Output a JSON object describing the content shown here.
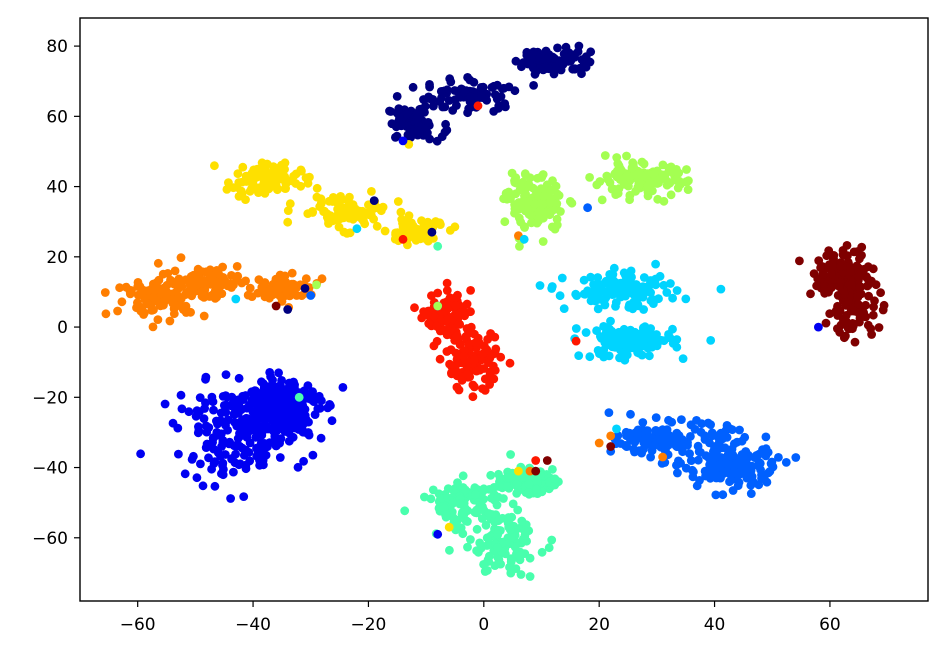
{
  "chart_data": {
    "type": "scatter",
    "title": "",
    "xlabel": "",
    "ylabel": "",
    "xlim": [
      -70,
      77
    ],
    "ylim": [
      -78,
      88
    ],
    "xticks": [
      -60,
      -40,
      -20,
      0,
      20,
      40,
      60
    ],
    "yticks": [
      -60,
      -40,
      -20,
      0,
      20,
      40,
      60,
      80
    ],
    "xtick_labels": [
      "−60",
      "−40",
      "−20",
      "0",
      "20",
      "40",
      "60"
    ],
    "ytick_labels": [
      "−60",
      "−40",
      "−20",
      "0",
      "20",
      "40",
      "60",
      "80"
    ],
    "grid": false,
    "legend": "none",
    "clusters": [
      {
        "color": "#00007f",
        "centers": [
          [
            -12,
            58,
            3,
            3
          ],
          [
            -2,
            66,
            5,
            3
          ],
          [
            12,
            76,
            4,
            2.5
          ]
        ],
        "count": 230
      },
      {
        "color": "#fee000",
        "centers": [
          [
            -38,
            42,
            4,
            3
          ],
          [
            -24,
            33,
            5,
            3
          ],
          [
            -12,
            27,
            3,
            2
          ]
        ],
        "count": 260
      },
      {
        "color": "#a4ff52",
        "centers": [
          [
            9,
            35,
            3,
            5
          ],
          [
            27,
            42,
            5,
            3
          ]
        ],
        "count": 250
      },
      {
        "color": "#ff7e00",
        "centers": [
          [
            -56,
            8,
            5,
            3
          ],
          [
            -48,
            13,
            5,
            3
          ],
          [
            -34,
            11,
            3,
            2
          ]
        ],
        "count": 270
      },
      {
        "color": "#fe1800",
        "centers": [
          [
            -6,
            2,
            2.5,
            5
          ],
          [
            -2,
            -10,
            3,
            5
          ]
        ],
        "count": 200
      },
      {
        "color": "#00d4ff",
        "centers": [
          [
            24,
            10,
            6,
            3
          ],
          [
            25,
            -4,
            5,
            3
          ]
        ],
        "count": 260
      },
      {
        "color": "#7f0000",
        "centers": [
          [
            64,
            8,
            3,
            7
          ],
          [
            62,
            15,
            3,
            4
          ]
        ],
        "count": 200
      },
      {
        "color": "#0000f1",
        "centers": [
          [
            -42,
            -30,
            7,
            8
          ],
          [
            -35,
            -22,
            4,
            5
          ]
        ],
        "count": 420
      },
      {
        "color": "#0060ff",
        "centers": [
          [
            33,
            -32,
            6,
            3
          ],
          [
            43,
            -40,
            5,
            4
          ]
        ],
        "count": 300
      },
      {
        "color": "#49ffad",
        "centers": [
          [
            -3,
            -50,
            5,
            4
          ],
          [
            3,
            -62,
            4,
            5
          ],
          [
            7,
            -44,
            3,
            2
          ]
        ],
        "count": 320
      }
    ],
    "outliers": [
      {
        "color": "#fee000",
        "x": -13,
        "y": 52
      },
      {
        "color": "#fe1800",
        "x": -1,
        "y": 63
      },
      {
        "color": "#0000f1",
        "x": -14,
        "y": 53
      },
      {
        "color": "#00007f",
        "x": -19,
        "y": 36
      },
      {
        "color": "#fe1800",
        "x": -14,
        "y": 25
      },
      {
        "color": "#00d4ff",
        "x": -22,
        "y": 28
      },
      {
        "color": "#00007f",
        "x": -9,
        "y": 27
      },
      {
        "color": "#49ffad",
        "x": -8,
        "y": 23
      },
      {
        "color": "#0060ff",
        "x": 18,
        "y": 34
      },
      {
        "color": "#ff7e00",
        "x": 6,
        "y": 26
      },
      {
        "color": "#00d4ff",
        "x": 7,
        "y": 25
      },
      {
        "color": "#fe1800",
        "x": 16,
        "y": -4
      },
      {
        "color": "#00d4ff",
        "x": -43,
        "y": 8
      },
      {
        "color": "#00007f",
        "x": -31,
        "y": 11
      },
      {
        "color": "#a4ff52",
        "x": -29,
        "y": 12
      },
      {
        "color": "#0060ff",
        "x": -30,
        "y": 9
      },
      {
        "color": "#7f0000",
        "x": -36,
        "y": 6
      },
      {
        "color": "#00007f",
        "x": -34,
        "y": 5
      },
      {
        "color": "#49ffad",
        "x": -32,
        "y": -20
      },
      {
        "color": "#0000f1",
        "x": -8,
        "y": 6
      },
      {
        "color": "#a4ff52",
        "x": -8,
        "y": 6
      },
      {
        "color": "#0000f1",
        "x": 58,
        "y": 0
      },
      {
        "color": "#ff7e00",
        "x": 22,
        "y": -31
      },
      {
        "color": "#7f0000",
        "x": 22,
        "y": -34
      },
      {
        "color": "#00d4ff",
        "x": 23,
        "y": -29
      },
      {
        "color": "#ff7e00",
        "x": 31,
        "y": -37
      },
      {
        "color": "#ff7e00",
        "x": 20,
        "y": -33
      },
      {
        "color": "#7f0000",
        "x": 11,
        "y": -38
      },
      {
        "color": "#fe1800",
        "x": 9,
        "y": -38
      },
      {
        "color": "#ff7e00",
        "x": 8,
        "y": -41
      },
      {
        "color": "#fee000",
        "x": 6,
        "y": -41
      },
      {
        "color": "#7f0000",
        "x": 9,
        "y": -41
      },
      {
        "color": "#0000f1",
        "x": -8,
        "y": -59
      },
      {
        "color": "#fee000",
        "x": -6,
        "y": -57
      }
    ]
  }
}
